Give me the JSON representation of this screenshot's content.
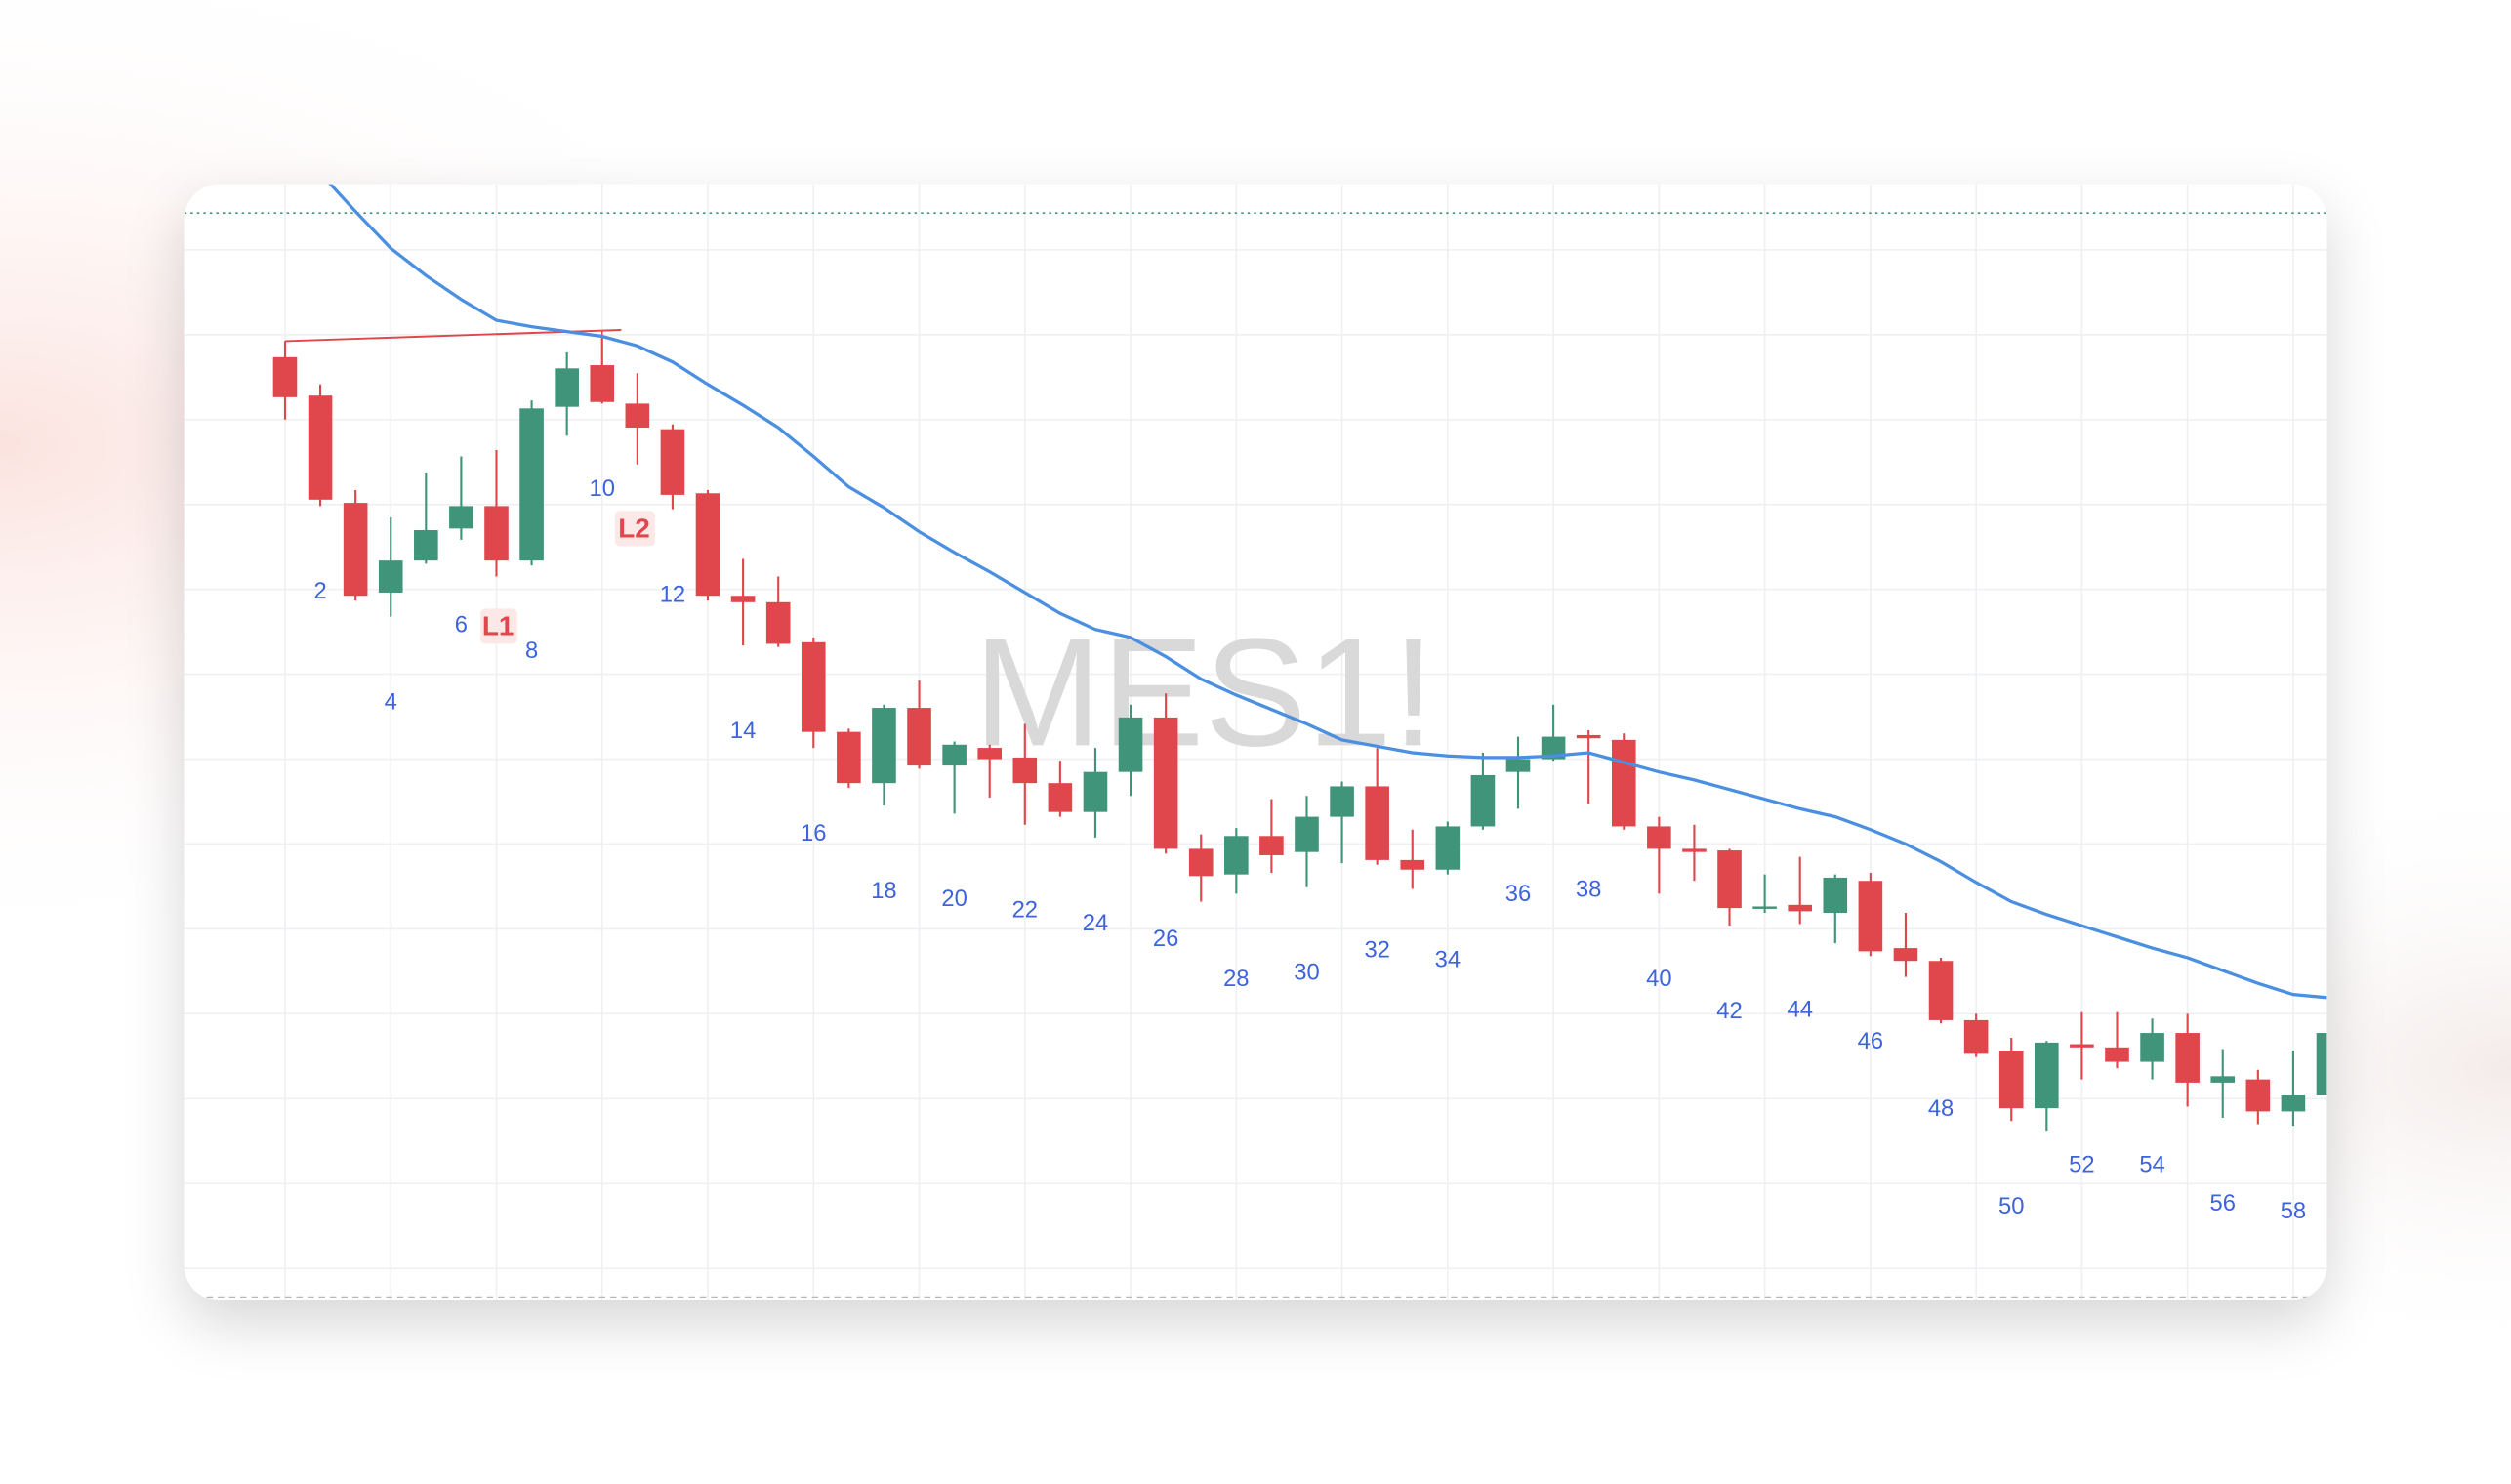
{
  "chart_data": {
    "type": "candlestick",
    "watermark": "MES1!",
    "annotations": [
      "L1",
      "L2"
    ],
    "categories": [
      null,
      2,
      null,
      4,
      null,
      6,
      null,
      8,
      null,
      10,
      null,
      12,
      null,
      14,
      null,
      16,
      null,
      18,
      null,
      20,
      null,
      22,
      null,
      24,
      null,
      26,
      null,
      28,
      null,
      30,
      null,
      32,
      null,
      34,
      null,
      36,
      null,
      38,
      null,
      40,
      null,
      42,
      null,
      44,
      null,
      46,
      null,
      48,
      null,
      50,
      null,
      52,
      null,
      54,
      null,
      56,
      null,
      58,
      null
    ],
    "open": [
      59.7,
      57.3,
      50.6,
      45,
      47,
      49,
      50.4,
      47,
      56.6,
      59.2,
      56.8,
      55.2,
      51.2,
      44.8,
      44.4,
      41.9,
      36.3,
      33.1,
      37.8,
      34.2,
      35.3,
      34.7,
      33.1,
      31.3,
      33.8,
      37.2,
      29,
      27.4,
      29.8,
      28.8,
      31,
      32.9,
      28.3,
      27.7,
      30.4,
      33.8,
      34.6,
      36.1,
      35.8,
      30.4,
      29,
      28.9,
      25.3,
      25.5,
      25,
      27,
      22.8,
      22,
      18.3,
      16.4,
      12.8,
      16.8,
      16.6,
      15.7,
      17.5,
      14.4,
      14.6,
      12.6,
      13.6
    ],
    "high": [
      60.7,
      58,
      51.4,
      49.7,
      52.5,
      53.5,
      53.9,
      57,
      60,
      61,
      58.7,
      55.5,
      51.4,
      47.1,
      46,
      42.2,
      36.5,
      38,
      39.5,
      35.7,
      35.5,
      36.8,
      34.5,
      35.3,
      38,
      38.7,
      29.9,
      30.3,
      32.1,
      32.3,
      33.2,
      35.3,
      30.2,
      30.7,
      35,
      36,
      38,
      36.4,
      36.2,
      31,
      30.5,
      29,
      27.4,
      28.5,
      27.4,
      27.5,
      25,
      22.2,
      18.7,
      17.2,
      17,
      18.8,
      18.8,
      18.4,
      18.7,
      16.5,
      15.2,
      16.4,
      18
    ],
    "low": [
      55.8,
      50.4,
      44.5,
      43.5,
      46.8,
      48.3,
      46,
      46.7,
      54.8,
      56.8,
      53,
      50.2,
      44.5,
      41.7,
      41.6,
      35.3,
      32.8,
      31.7,
      34,
      31.2,
      32.2,
      30.5,
      31,
      29.7,
      32.3,
      28.7,
      25.7,
      26.2,
      27.5,
      26.6,
      28.1,
      28,
      26.5,
      27.4,
      30.2,
      31.5,
      34.5,
      31.8,
      30.2,
      26.2,
      27,
      24.2,
      25,
      24.3,
      23.1,
      22.3,
      21,
      18.1,
      16,
      12,
      11.4,
      14.6,
      15.3,
      14.6,
      12.9,
      12.2,
      11.8,
      11.7,
      13
    ],
    "close": [
      57.2,
      50.8,
      44.8,
      47,
      48.9,
      50.4,
      47,
      56.5,
      59,
      56.9,
      55.3,
      51.1,
      44.8,
      44.4,
      41.8,
      36.3,
      33.1,
      37.8,
      34.2,
      35.5,
      34.6,
      33.1,
      31.3,
      33.8,
      37.2,
      29,
      27.3,
      29.8,
      28.6,
      31,
      32.9,
      28.3,
      27.7,
      30.4,
      33.6,
      34.6,
      36,
      35.9,
      30.4,
      29,
      28.8,
      25.3,
      25.4,
      25.1,
      27.2,
      22.6,
      22,
      18.3,
      16.2,
      12.8,
      16.9,
      16.6,
      15.7,
      17.5,
      14.4,
      14.8,
      12.6,
      13.6,
      17.5
    ],
    "up_color": "#3f9479",
    "down_color": "#e0474c",
    "moving_average": {
      "color": "#4a8fe0",
      "values": [
        null,
        71.2,
        68.8,
        66.5,
        64.8,
        63.3,
        62,
        61.6,
        61.3,
        61,
        60.4,
        59.4,
        58,
        56.7,
        55.3,
        53.5,
        51.6,
        50.3,
        48.8,
        47.5,
        46.3,
        45,
        43.7,
        42.7,
        42.2,
        41,
        39.6,
        38.6,
        37.7,
        36.8,
        35.8,
        35.4,
        35,
        34.8,
        34.7,
        34.7,
        34.8,
        35,
        34.4,
        33.8,
        33.3,
        32.7,
        32.1,
        31.5,
        31,
        30.2,
        29.3,
        28.2,
        26.9,
        25.7,
        24.9,
        24.2,
        23.5,
        22.8,
        22.2,
        21.4,
        20.6,
        19.9,
        19.7
      ]
    },
    "ylim": [
      0.8,
      70.5
    ],
    "yticks": [
      2.8,
      8.1,
      13.4,
      18.7,
      24,
      29.3,
      34.6,
      39.9,
      45.2,
      50.5,
      55.8,
      61.1,
      66.4
    ],
    "grid": true
  }
}
